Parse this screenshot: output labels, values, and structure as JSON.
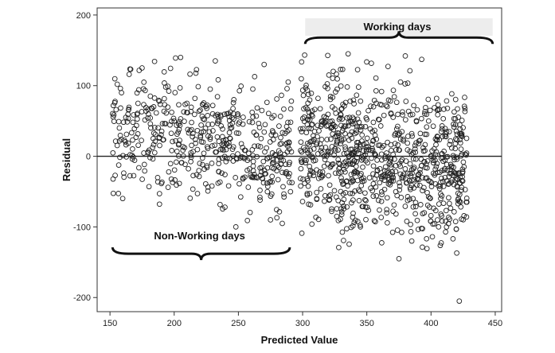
{
  "chart_data": {
    "type": "scatter",
    "title": "",
    "xlabel": "Predicted Value",
    "ylabel": "Residual",
    "xlim": [
      140,
      455
    ],
    "ylim": [
      -220,
      210
    ],
    "xticks": [
      150,
      200,
      250,
      300,
      350,
      400,
      450
    ],
    "yticks": [
      -200,
      -100,
      0,
      100,
      200
    ],
    "grid": false,
    "reference_line_y": 0,
    "annotations": [
      {
        "text": "Working days",
        "brace_x_range": [
          302,
          448
        ],
        "brace_y": 168
      },
      {
        "text": "Non-Working days",
        "brace_x_range": [
          152,
          290
        ],
        "brace_y": -138
      }
    ],
    "series": [
      {
        "marker": "open-circle",
        "clusters": [
          {
            "x_range": [
              152,
              292
            ],
            "y_range": [
              -95,
              140
            ],
            "count": 520
          },
          {
            "x_range": [
              298,
              428
            ],
            "y_range": [
              -145,
              145
            ],
            "count": 880
          }
        ],
        "points": [
          {
            "x": 375,
            "y": -145
          },
          {
            "x": 422,
            "y": -205
          },
          {
            "x": 420,
            "y": -137
          },
          {
            "x": 205,
            "y": 140
          },
          {
            "x": 380,
            "y": 142
          },
          {
            "x": 232,
            "y": 135
          },
          {
            "x": 175,
            "y": 125
          },
          {
            "x": 270,
            "y": 130
          },
          {
            "x": 345,
            "y": -100
          },
          {
            "x": 385,
            "y": -120
          },
          {
            "x": 248,
            "y": -100
          },
          {
            "x": 275,
            "y": -90
          }
        ]
      }
    ]
  }
}
